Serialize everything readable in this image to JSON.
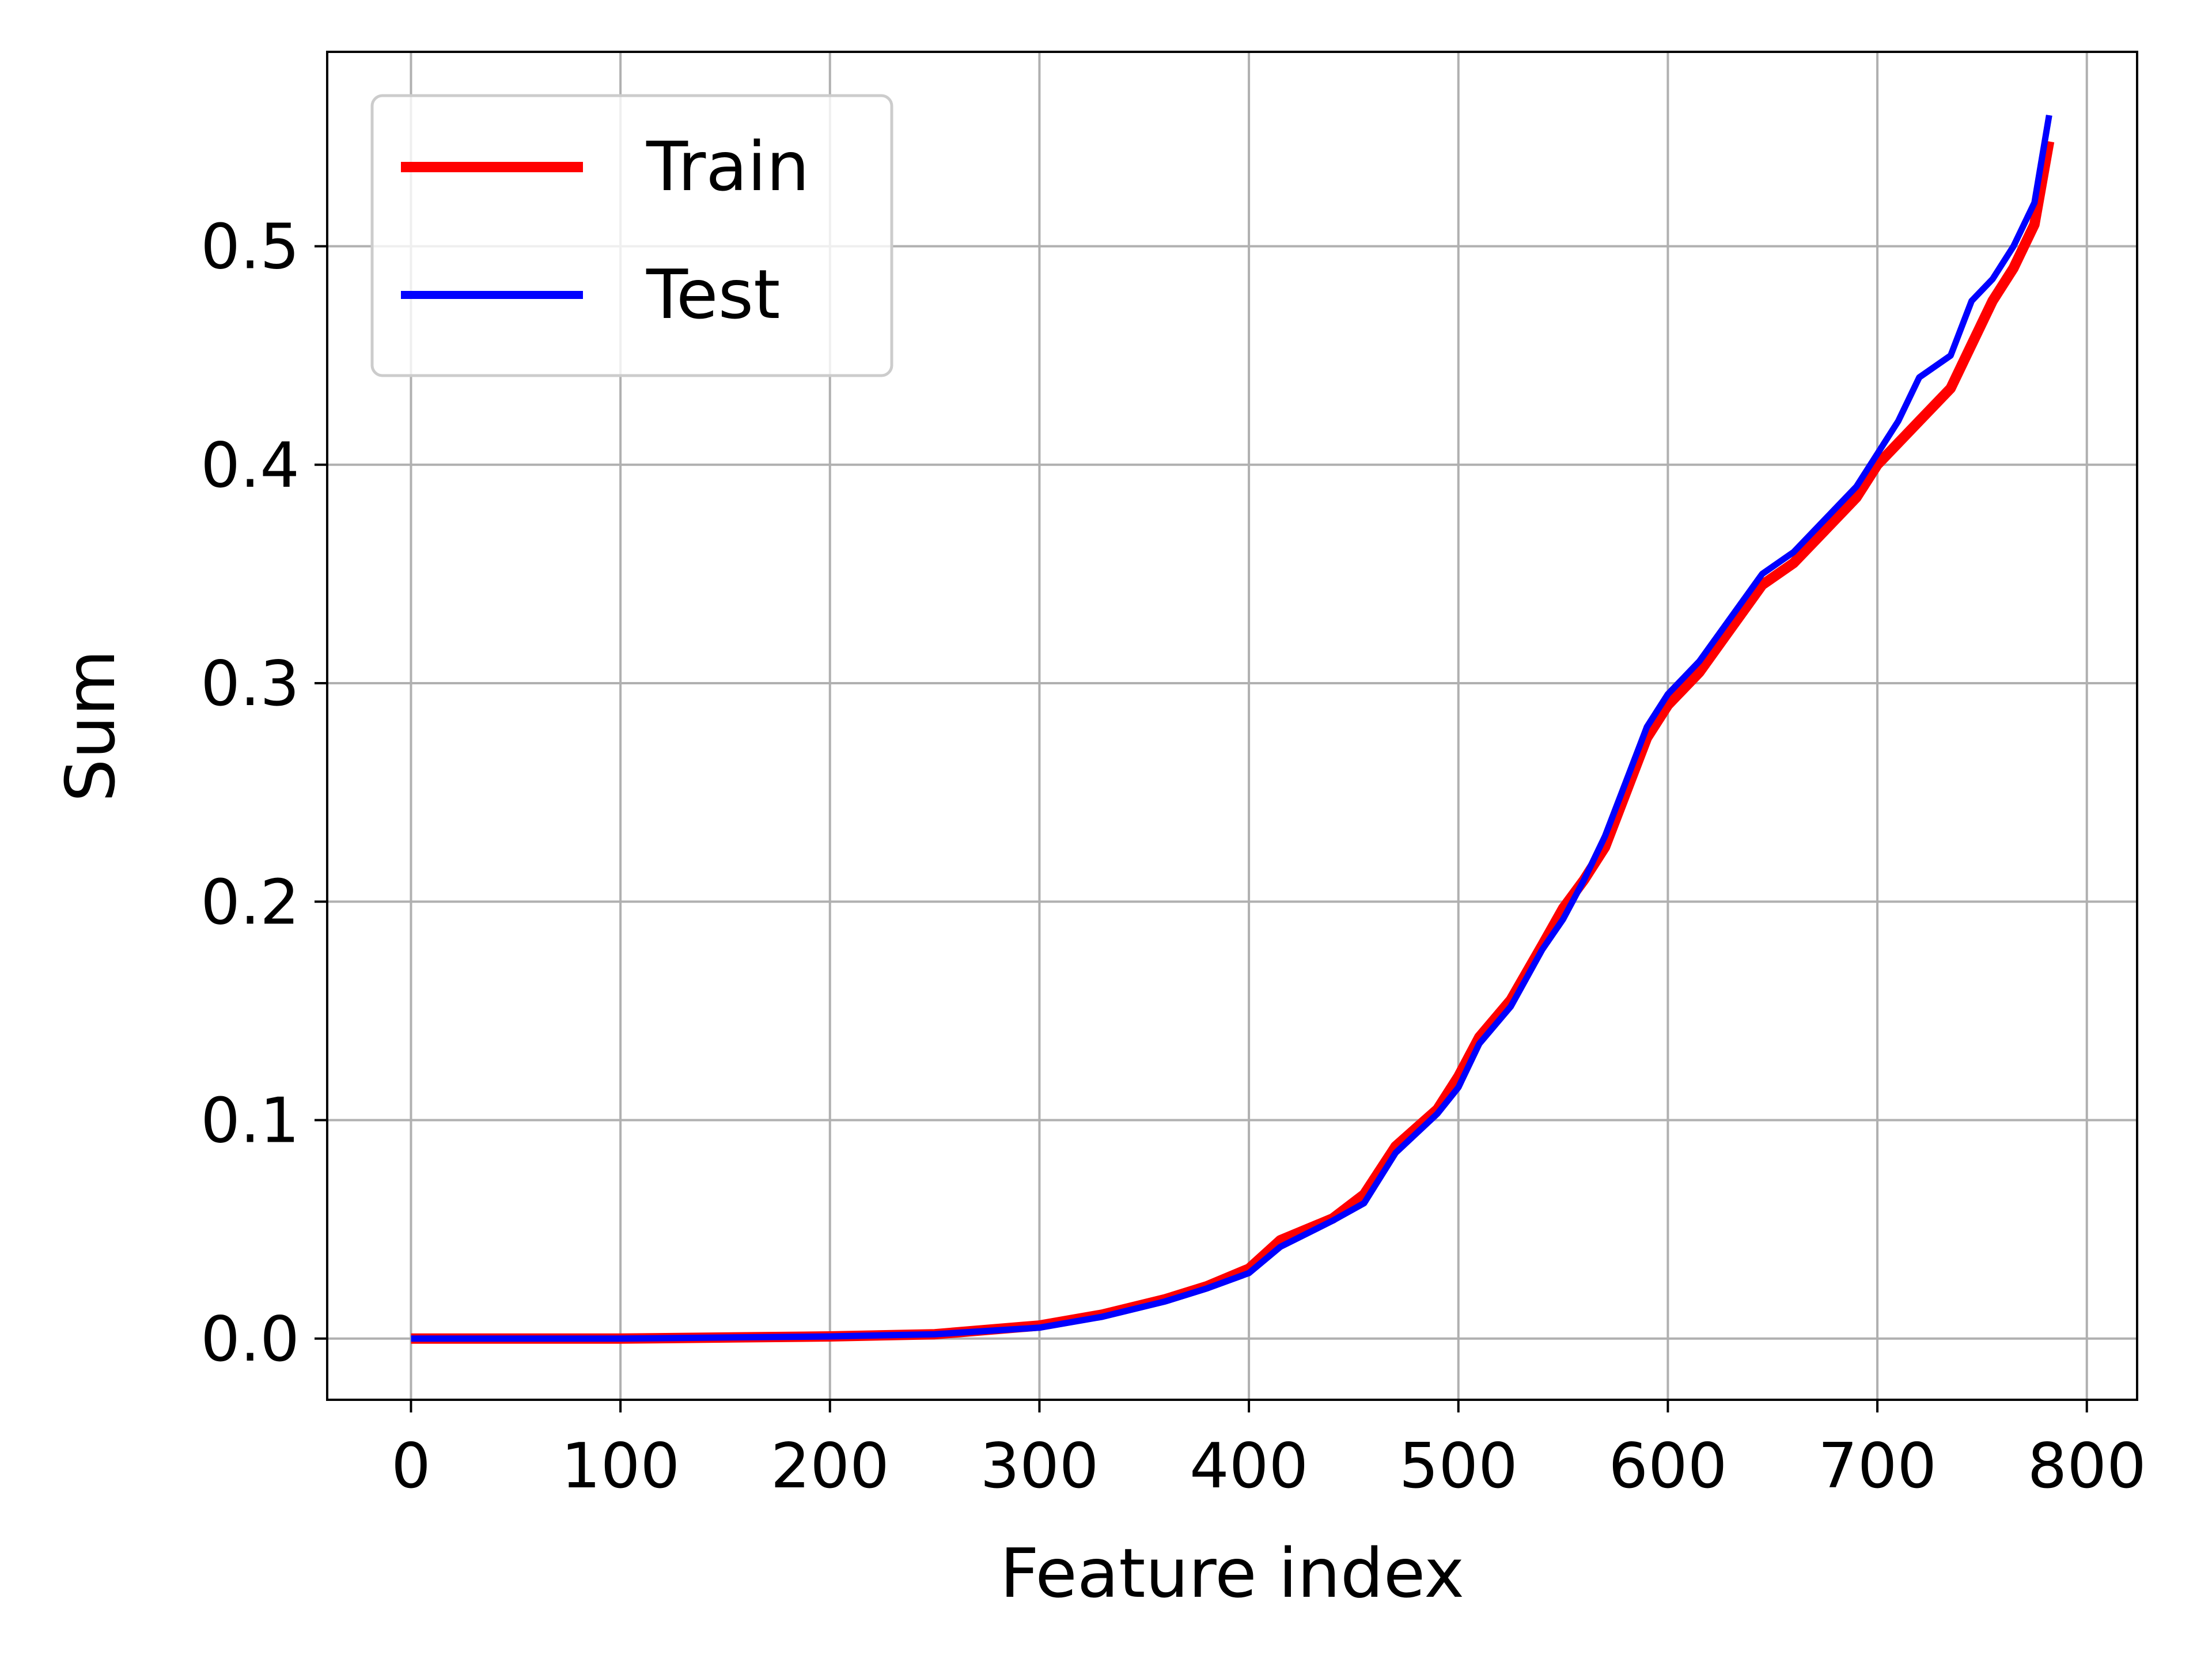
{
  "chart_data": {
    "type": "line",
    "title": "",
    "xlabel": "Feature index",
    "ylabel": "Sum",
    "xlim": [
      -40,
      824
    ],
    "ylim": [
      -0.028,
      0.589
    ],
    "x_ticks": [
      0,
      100,
      200,
      300,
      400,
      500,
      600,
      700,
      800
    ],
    "x_tick_labels": [
      "0",
      "100",
      "200",
      "300",
      "400",
      "500",
      "600",
      "700",
      "800"
    ],
    "y_ticks": [
      0.0,
      0.1,
      0.2,
      0.3,
      0.4,
      0.5
    ],
    "y_tick_labels": [
      "0.0",
      "0.1",
      "0.2",
      "0.3",
      "0.4",
      "0.5"
    ],
    "grid": true,
    "legend_position": "top-left",
    "series": [
      {
        "name": "Train",
        "color": "#ff0000",
        "x": [
          0,
          100,
          200,
          250,
          300,
          330,
          360,
          380,
          400,
          415,
          440,
          455,
          470,
          490,
          500,
          510,
          525,
          540,
          550,
          560,
          570,
          580,
          590,
          600,
          615,
          630,
          645,
          660,
          675,
          690,
          700,
          710,
          720,
          735,
          745,
          755,
          765,
          775,
          782
        ],
        "y": [
          0.0,
          0.0,
          0.001,
          0.002,
          0.006,
          0.011,
          0.018,
          0.024,
          0.032,
          0.045,
          0.055,
          0.066,
          0.088,
          0.105,
          0.12,
          0.138,
          0.155,
          0.18,
          0.197,
          0.21,
          0.225,
          0.25,
          0.275,
          0.29,
          0.305,
          0.325,
          0.345,
          0.355,
          0.37,
          0.385,
          0.4,
          0.41,
          0.42,
          0.435,
          0.455,
          0.475,
          0.49,
          0.51,
          0.548
        ]
      },
      {
        "name": "Test",
        "color": "#0000ff",
        "x": [
          0,
          100,
          200,
          250,
          300,
          330,
          360,
          380,
          400,
          415,
          440,
          455,
          470,
          490,
          500,
          510,
          525,
          540,
          550,
          560,
          570,
          580,
          590,
          600,
          615,
          630,
          645,
          660,
          675,
          690,
          700,
          710,
          720,
          735,
          745,
          755,
          765,
          775,
          782
        ],
        "y": [
          0.0,
          0.0,
          0.001,
          0.002,
          0.005,
          0.01,
          0.017,
          0.023,
          0.03,
          0.042,
          0.054,
          0.062,
          0.085,
          0.103,
          0.115,
          0.135,
          0.152,
          0.178,
          0.192,
          0.21,
          0.23,
          0.255,
          0.28,
          0.295,
          0.31,
          0.33,
          0.35,
          0.36,
          0.375,
          0.39,
          0.405,
          0.42,
          0.44,
          0.45,
          0.475,
          0.485,
          0.5,
          0.52,
          0.56
        ]
      }
    ]
  }
}
